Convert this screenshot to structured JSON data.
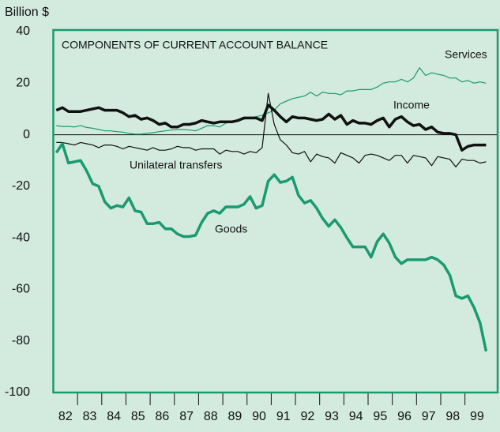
{
  "chart_data": {
    "type": "line",
    "title": "COMPONENTS OF CURRENT ACCOUNT BALANCE",
    "y_label": "Billion $",
    "x": [
      1982.125,
      1982.375,
      1982.625,
      1982.875,
      1983.125,
      1983.375,
      1983.625,
      1983.875,
      1984.125,
      1984.375,
      1984.625,
      1984.875,
      1985.125,
      1985.375,
      1985.625,
      1985.875,
      1986.125,
      1986.375,
      1986.625,
      1986.875,
      1987.125,
      1987.375,
      1987.625,
      1987.875,
      1988.125,
      1988.375,
      1988.625,
      1988.875,
      1989.125,
      1989.375,
      1989.625,
      1989.875,
      1990.125,
      1990.375,
      1990.625,
      1990.875,
      1991.125,
      1991.375,
      1991.625,
      1991.875,
      1992.125,
      1992.375,
      1992.625,
      1992.875,
      1993.125,
      1993.375,
      1993.625,
      1993.875,
      1994.125,
      1994.375,
      1994.625,
      1994.875,
      1995.125,
      1995.375,
      1995.625,
      1995.875,
      1996.125,
      1996.375,
      1996.625,
      1996.875,
      1997.125,
      1997.375,
      1997.625,
      1997.875,
      1998.125,
      1998.375,
      1998.625,
      1998.875,
      1999.125,
      1999.375,
      1999.625,
      1999.875
    ],
    "series": [
      {
        "name": "Services",
        "color": "#1a9a70",
        "line_width": 1.2,
        "values": [
          3.5,
          3.2,
          3.2,
          3,
          3.5,
          2.8,
          2.5,
          2,
          1.5,
          1.5,
          1.2,
          1,
          0.5,
          0.2,
          0.2,
          0.5,
          0.8,
          1.2,
          1.5,
          1.8,
          2,
          2,
          1.8,
          1.5,
          2.5,
          3.5,
          3.5,
          3,
          4.5,
          5,
          5.5,
          6,
          6.5,
          7,
          7.5,
          8.5,
          9.5,
          12,
          13,
          14,
          14.5,
          15,
          16.5,
          15,
          16.5,
          16,
          16,
          15.5,
          17,
          17,
          17.5,
          17.5,
          17.5,
          18.5,
          20,
          20.5,
          20.5,
          21.5,
          20.5,
          22,
          26,
          23,
          24,
          23.5,
          23,
          22,
          22,
          20.5,
          21,
          20,
          20.5,
          20
        ]
      },
      {
        "name": "Income",
        "color": "#111111",
        "line_width": 3.5,
        "values": [
          9.5,
          10.5,
          9,
          9,
          9,
          9.5,
          10,
          10.5,
          9.5,
          9.5,
          9.5,
          8.5,
          7,
          7.5,
          6,
          6.5,
          5.5,
          4,
          4.5,
          3,
          3,
          4,
          4,
          4.5,
          5.5,
          5,
          4.5,
          5,
          5,
          5,
          5.5,
          6.5,
          6.5,
          6.5,
          5.5,
          11.5,
          9.5,
          7,
          5,
          7,
          6.5,
          6.5,
          6,
          5.5,
          6,
          8,
          6,
          7.5,
          4,
          5.5,
          4.5,
          4.5,
          4,
          5.5,
          6.5,
          3,
          6,
          7,
          5,
          3.5,
          4,
          2,
          3,
          1,
          0.5,
          0.5,
          0,
          -6,
          -4.5,
          -4,
          -4,
          -4
        ]
      },
      {
        "name": "Unilateral transfers",
        "color": "#111111",
        "line_width": 1.2,
        "values": [
          -3,
          -3,
          -3.5,
          -4,
          -3,
          -3.5,
          -4,
          -5,
          -4,
          -4,
          -4.5,
          -5.5,
          -4.5,
          -5,
          -5.5,
          -6,
          -5,
          -6,
          -6,
          -5.5,
          -4.5,
          -5,
          -5,
          -6,
          -5.5,
          -5.5,
          -5.5,
          -7.5,
          -6,
          -6.5,
          -6.5,
          -7.5,
          -6.5,
          -7,
          -5,
          16,
          4,
          -2,
          -4,
          -7,
          -7.5,
          -6.5,
          -10.5,
          -7.5,
          -8.5,
          -9,
          -11,
          -7,
          -8,
          -9,
          -11,
          -8,
          -7.5,
          -8,
          -9,
          -10,
          -8,
          -8,
          -11,
          -8,
          -8.5,
          -9,
          -12,
          -8.5,
          -9,
          -9.5,
          -12.5,
          -9.5,
          -10,
          -10,
          -11,
          -10.5
        ]
      },
      {
        "name": "Goods",
        "color": "#1a9a70",
        "line_width": 3.5,
        "values": [
          -7,
          -3.5,
          -11,
          -10.5,
          -10,
          -14,
          -19,
          -20,
          -26,
          -28.5,
          -27.5,
          -28,
          -24.5,
          -29.5,
          -30,
          -34.5,
          -34.5,
          -34,
          -36.5,
          -36.5,
          -38.5,
          -39.5,
          -39.5,
          -39,
          -34,
          -30.5,
          -29.5,
          -30.5,
          -28,
          -28,
          -28,
          -27,
          -24,
          -28.5,
          -27.5,
          -18,
          -15.5,
          -18.5,
          -18,
          -16.5,
          -23.5,
          -26.5,
          -25.5,
          -28.5,
          -32.5,
          -35.5,
          -33,
          -36,
          -40,
          -43.5,
          -43.5,
          -43.5,
          -47.5,
          -41.5,
          -38.5,
          -42,
          -47.5,
          -50,
          -48.5,
          -48.5,
          -48.5,
          -48.5,
          -47.5,
          -48.5,
          -50.5,
          -54.5,
          -62.5,
          -63.5,
          -62.5,
          -67,
          -73,
          -84
        ]
      }
    ],
    "xlim": [
      1982,
      2000.35
    ],
    "ylim": [
      -100,
      40
    ],
    "yticks": [
      40,
      20,
      0,
      -20,
      -40,
      -60,
      -80,
      -100
    ],
    "xticks": [
      {
        "value": 1982.5,
        "label": "82"
      },
      {
        "value": 1983.5,
        "label": "83"
      },
      {
        "value": 1984.5,
        "label": "84"
      },
      {
        "value": 1985.5,
        "label": "85"
      },
      {
        "value": 1986.5,
        "label": "86"
      },
      {
        "value": 1987.5,
        "label": "87"
      },
      {
        "value": 1988.5,
        "label": "88"
      },
      {
        "value": 1989.5,
        "label": "89"
      },
      {
        "value": 1990.5,
        "label": "90"
      },
      {
        "value": 1991.5,
        "label": "91"
      },
      {
        "value": 1992.5,
        "label": "92"
      },
      {
        "value": 1993.5,
        "label": "93"
      },
      {
        "value": 1994.5,
        "label": "94"
      },
      {
        "value": 1995.5,
        "label": "95"
      },
      {
        "value": 1996.5,
        "label": "96"
      },
      {
        "value": 1997.5,
        "label": "97"
      },
      {
        "value": 1998.5,
        "label": "98"
      },
      {
        "value": 1999.5,
        "label": "99"
      }
    ],
    "grid": false
  }
}
